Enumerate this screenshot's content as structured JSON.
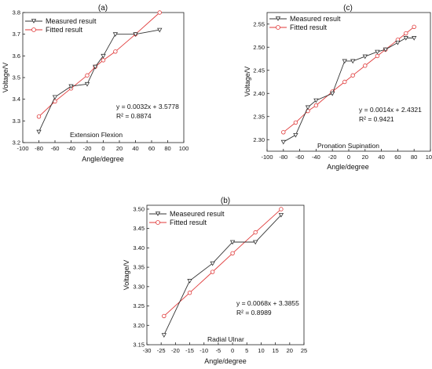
{
  "chart_data": [
    {
      "type": "line",
      "panel_label": "(a)",
      "xlabel": "Angle/degree",
      "ylabel": "Voltage/V",
      "xlim": [
        -100,
        100
      ],
      "ylim": [
        3.2,
        3.8
      ],
      "xticks": [
        -100,
        -80,
        -60,
        -40,
        -20,
        0,
        20,
        40,
        60,
        80,
        100
      ],
      "yticks": [
        3.2,
        3.3,
        3.4,
        3.5,
        3.6,
        3.7,
        3.8
      ],
      "ytick_labels": [
        "3.2",
        "3.3",
        "3.4",
        "3.5",
        "3.6",
        "3.7",
        "3.8"
      ],
      "legend": "top-left",
      "series": [
        {
          "name": "Measured result",
          "color": "#333333",
          "marker": "down-triangle",
          "x": [
            -80,
            -60,
            -40,
            -20,
            -10,
            0,
            15,
            40,
            70
          ],
          "y": [
            3.25,
            3.41,
            3.46,
            3.47,
            3.55,
            3.6,
            3.7,
            3.7,
            3.72
          ]
        },
        {
          "name": "Fitted result",
          "color": "#e03a3a",
          "marker": "circle",
          "x": [
            -80,
            -60,
            -40,
            -20,
            -10,
            0,
            15,
            40,
            70
          ],
          "y": [
            3.32,
            3.39,
            3.45,
            3.51,
            3.55,
            3.58,
            3.62,
            3.7,
            3.8
          ]
        }
      ],
      "equation": "y = 0.0032x + 3.5778",
      "r2": "R² = 0.8874",
      "annotation": "Extension  Flexion"
    },
    {
      "type": "line",
      "panel_label": "(c)",
      "xlabel": "Angle/degree",
      "ylabel": "Voltage/V",
      "xlim": [
        -100,
        100
      ],
      "ylim": [
        2.275,
        2.575
      ],
      "xticks": [
        -100,
        -80,
        -60,
        -40,
        -20,
        0,
        20,
        40,
        60,
        80,
        100
      ],
      "yticks": [
        2.3,
        2.35,
        2.4,
        2.45,
        2.5,
        2.55
      ],
      "ytick_labels": [
        "2.30",
        "2.35",
        "2.40",
        "2.45",
        "2.50",
        "2.55"
      ],
      "legend": "top-left",
      "series": [
        {
          "name": "Measured result",
          "color": "#333333",
          "marker": "down-triangle",
          "x": [
            -80,
            -65,
            -50,
            -40,
            -20,
            -5,
            5,
            20,
            35,
            45,
            60,
            70,
            80
          ],
          "y": [
            2.295,
            2.31,
            2.37,
            2.385,
            2.4,
            2.47,
            2.47,
            2.48,
            2.49,
            2.495,
            2.51,
            2.52,
            2.52
          ]
        },
        {
          "name": "Fitted result",
          "color": "#e03a3a",
          "marker": "circle",
          "x": [
            -80,
            -65,
            -50,
            -40,
            -20,
            -5,
            5,
            20,
            35,
            45,
            60,
            70,
            80
          ],
          "y": [
            2.316,
            2.337,
            2.362,
            2.374,
            2.404,
            2.425,
            2.439,
            2.46,
            2.481,
            2.495,
            2.516,
            2.53,
            2.544
          ]
        }
      ],
      "equation": "y = 0.0014x + 2.4321",
      "r2": "R² = 0.9421",
      "annotation": "Pronation  Supination"
    },
    {
      "type": "line",
      "panel_label": "(b)",
      "xlabel": "Angle/degree",
      "ylabel": "Voltage/V",
      "xlim": [
        -30,
        25
      ],
      "ylim": [
        3.15,
        3.51
      ],
      "xticks": [
        -30,
        -25,
        -20,
        -15,
        -10,
        -5,
        0,
        5,
        10,
        15,
        20,
        25
      ],
      "yticks": [
        3.15,
        3.2,
        3.25,
        3.3,
        3.35,
        3.4,
        3.45,
        3.5
      ],
      "ytick_labels": [
        "3.15",
        "3.20",
        "3.25",
        "3.30",
        "3.35",
        "3.40",
        "3.45",
        "3.50"
      ],
      "legend": "top-left",
      "series": [
        {
          "name": "Measeured result",
          "color": "#333333",
          "marker": "down-triangle",
          "x": [
            -24,
            -15,
            -7,
            0,
            8,
            17
          ],
          "y": [
            3.175,
            3.315,
            3.36,
            3.415,
            3.415,
            3.485
          ]
        },
        {
          "name": "Fitted result",
          "color": "#e03a3a",
          "marker": "circle",
          "x": [
            -24,
            -15,
            -7,
            0,
            8,
            17
          ],
          "y": [
            3.224,
            3.284,
            3.338,
            3.386,
            3.44,
            3.5
          ]
        }
      ],
      "equation": "y = 0.0068x + 3.3855",
      "r2": "R² = 0.8989",
      "annotation": "Radial     Ulnar"
    }
  ]
}
